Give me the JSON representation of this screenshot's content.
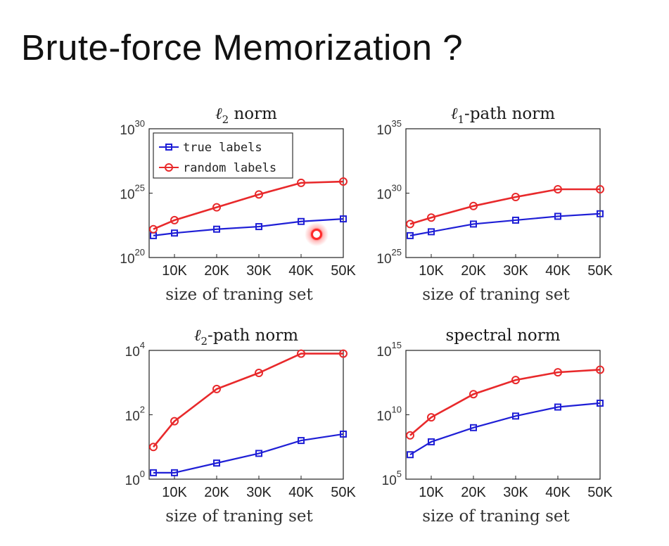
{
  "slide": {
    "title": "Brute-force Memorization ?"
  },
  "colors": {
    "true_labels": "#1f1fd6",
    "random_labels": "#e8292b"
  },
  "chart_data": [
    {
      "type": "line",
      "title_main": "ℓ",
      "title_sub": "2",
      "title_rest": " norm",
      "xlabel": "size of traning set",
      "x": [
        5,
        10,
        20,
        30,
        40,
        50
      ],
      "xticks": [
        "10K",
        "20K",
        "30K",
        "40K",
        "50K"
      ],
      "xlim": [
        4,
        50
      ],
      "yscale": "log",
      "ylim_exp": [
        20,
        30
      ],
      "yticks": [
        {
          "exp": 20,
          "label": "10",
          "sup": "20"
        },
        {
          "exp": 25,
          "label": "10",
          "sup": "25"
        },
        {
          "exp": 30,
          "label": "10",
          "sup": "30"
        }
      ],
      "legend": {
        "position": "top-left",
        "entries": [
          "true labels",
          "random labels"
        ]
      },
      "series": [
        {
          "name": "true labels",
          "values_log10": [
            21.7,
            21.9,
            22.2,
            22.4,
            22.8,
            23.0
          ]
        },
        {
          "name": "random labels",
          "values_log10": [
            22.2,
            22.9,
            23.9,
            24.9,
            25.8,
            25.9
          ]
        }
      ]
    },
    {
      "type": "line",
      "title_main": "ℓ",
      "title_sub": "1",
      "title_rest": "-path norm",
      "xlabel": "size of traning set",
      "x": [
        5,
        10,
        20,
        30,
        40,
        50
      ],
      "xticks": [
        "10K",
        "20K",
        "30K",
        "40K",
        "50K"
      ],
      "xlim": [
        4,
        50
      ],
      "yscale": "log",
      "ylim_exp": [
        25,
        35
      ],
      "yticks": [
        {
          "exp": 25,
          "label": "10",
          "sup": "25"
        },
        {
          "exp": 30,
          "label": "10",
          "sup": "30"
        },
        {
          "exp": 35,
          "label": "10",
          "sup": "35"
        }
      ],
      "series": [
        {
          "name": "true labels",
          "values_log10": [
            26.7,
            27.0,
            27.6,
            27.9,
            28.2,
            28.4
          ]
        },
        {
          "name": "random labels",
          "values_log10": [
            27.6,
            28.1,
            29.0,
            29.7,
            30.3,
            30.3
          ]
        }
      ]
    },
    {
      "type": "line",
      "title_main": "ℓ",
      "title_sub": "2",
      "title_rest": "-path norm",
      "xlabel": "size of traning set",
      "x": [
        5,
        10,
        20,
        30,
        40,
        50
      ],
      "xticks": [
        "10K",
        "20K",
        "30K",
        "40K",
        "50K"
      ],
      "xlim": [
        4,
        50
      ],
      "yscale": "log",
      "ylim_exp": [
        0,
        4
      ],
      "yticks": [
        {
          "exp": 0,
          "label": "10",
          "sup": "0"
        },
        {
          "exp": 2,
          "label": "10",
          "sup": "2"
        },
        {
          "exp": 4,
          "label": "10",
          "sup": "4"
        }
      ],
      "series": [
        {
          "name": "true labels",
          "values_log10": [
            0.2,
            0.2,
            0.5,
            0.8,
            1.2,
            1.4
          ]
        },
        {
          "name": "random labels",
          "values_log10": [
            1.0,
            1.8,
            2.8,
            3.3,
            3.9,
            3.9
          ]
        }
      ]
    },
    {
      "type": "line",
      "title_main": "spectral norm",
      "title_sub": "",
      "title_rest": "",
      "xlabel": "size of traning set",
      "x": [
        5,
        10,
        20,
        30,
        40,
        50
      ],
      "xticks": [
        "10K",
        "20K",
        "30K",
        "40K",
        "50K"
      ],
      "xlim": [
        4,
        50
      ],
      "yscale": "log",
      "ylim_exp": [
        5,
        15
      ],
      "yticks": [
        {
          "exp": 5,
          "label": "10",
          "sup": "5"
        },
        {
          "exp": 10,
          "label": "10",
          "sup": "10"
        },
        {
          "exp": 15,
          "label": "10",
          "sup": "15"
        }
      ],
      "series": [
        {
          "name": "true labels",
          "values_log10": [
            6.9,
            7.9,
            9.0,
            9.9,
            10.6,
            10.9
          ]
        },
        {
          "name": "random labels",
          "values_log10": [
            8.4,
            9.8,
            11.6,
            12.7,
            13.3,
            13.5
          ]
        }
      ]
    }
  ]
}
